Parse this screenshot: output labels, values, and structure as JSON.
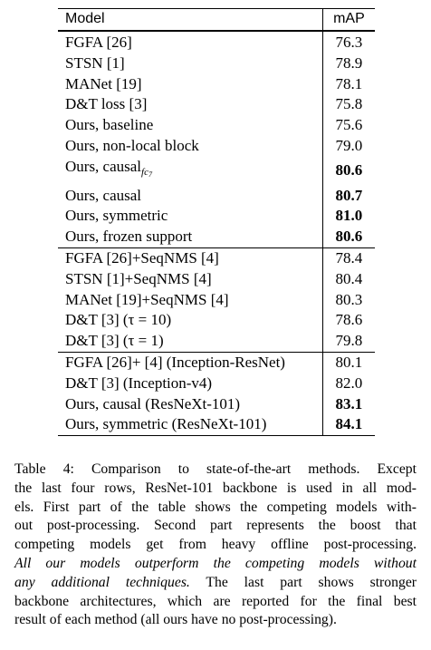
{
  "table": {
    "headers": {
      "model": "Model",
      "map": "mAP"
    },
    "groups": [
      {
        "rows": [
          {
            "model": "FGFA [26]",
            "map": "76.3",
            "bold": false
          },
          {
            "model": "STSN [1]",
            "map": "78.9",
            "bold": false
          },
          {
            "model": "MANet [19]",
            "map": "78.1",
            "bold": false
          },
          {
            "model": "D&T loss [3]",
            "map": "75.8",
            "bold": false
          },
          {
            "model": "Ours, baseline",
            "map": "75.6",
            "bold": false
          },
          {
            "model": "Ours, non-local block",
            "map": "79.0",
            "bold": false
          },
          {
            "model": "Ours, causal",
            "subscript": "fc",
            "subscript2": "7",
            "map": "80.6",
            "bold": true
          },
          {
            "model": "Ours, causal",
            "map": "80.7",
            "bold": true
          },
          {
            "model": "Ours, symmetric",
            "map": "81.0",
            "bold": true
          },
          {
            "model": "Ours, frozen support",
            "map": "80.6",
            "bold": true
          }
        ]
      },
      {
        "rows": [
          {
            "model": "FGFA [26]+SeqNMS [4]",
            "map": "78.4",
            "bold": false
          },
          {
            "model": "STSN [1]+SeqNMS [4]",
            "map": "80.4",
            "bold": false
          },
          {
            "model": "MANet [19]+SeqNMS [4]",
            "map": "80.3",
            "bold": false
          },
          {
            "model": "D&T [3] (τ = 10)",
            "map": "78.6",
            "bold": false
          },
          {
            "model": "D&T [3] (τ = 1)",
            "map": "79.8",
            "bold": false
          }
        ]
      },
      {
        "rows": [
          {
            "model": "FGFA [26]+ [4] (Inception-ResNet)",
            "map": "80.1",
            "bold": false
          },
          {
            "model": "D&T [3] (Inception-v4)",
            "map": "82.0",
            "bold": false
          },
          {
            "model": "Ours, causal (ResNeXt-101)",
            "map": "83.1",
            "bold": true
          },
          {
            "model": "Ours, symmetric (ResNeXt-101)",
            "map": "84.1",
            "bold": true
          }
        ]
      }
    ]
  },
  "caption": {
    "lines": [
      "Table 4: Comparison to state-of-the-art methods. Except",
      "the last four rows, ResNet-101 backbone is used in all mod-",
      "els. First part of the table shows the competing models with-",
      "out post-processing. Second part represents the boost that",
      "competing models get from heavy offline post-processing."
    ],
    "emphasis_lines": [
      "All our models outperform the competing models without",
      "any additional techniques."
    ],
    "after_emphasis": " The last part shows stronger",
    "tail_lines": [
      "backbone architectures, which are reported for the final best",
      "result of each method (all ours have no post-processing)."
    ]
  }
}
